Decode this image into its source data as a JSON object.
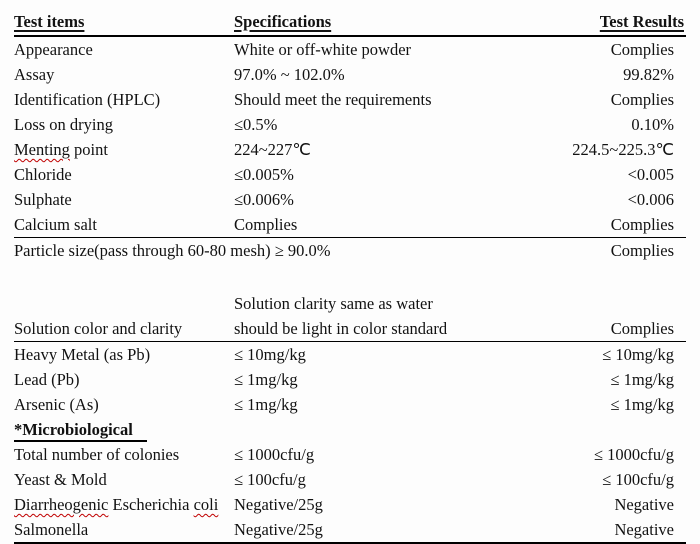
{
  "colors": {
    "text": "#121212",
    "rule": "#000000",
    "misspell_underline": "#c00000",
    "background": "#fdfdfd"
  },
  "table": {
    "headers": [
      "Test items",
      "Specifications",
      "Test Results"
    ],
    "rows": [
      {
        "item": "Appearance",
        "spec": "White or off-white powder",
        "result": "Complies"
      },
      {
        "item": "Assay",
        "spec": "97.0% ~ 102.0%",
        "result": "99.82%"
      },
      {
        "item": "Identification (HPLC)",
        "spec": "Should meet the requirements",
        "result": "Complies"
      },
      {
        "item": "Loss on drying",
        "spec": "≤0.5%",
        "result": "0.10%"
      },
      {
        "item": "Menting point",
        "spec": "224~227℃",
        "result": "224.5~225.3℃",
        "misspelled_words": [
          "Menting"
        ]
      },
      {
        "item": "Chloride",
        "spec": "≤0.005%",
        "result": "<0.005"
      },
      {
        "item": "Sulphate",
        "spec": "≤0.006%",
        "result": "<0.006"
      },
      {
        "item": "Calcium salt",
        "spec": "Complies",
        "result": "Complies",
        "rule_below": true
      },
      {
        "item": "Particle size(pass through 60-80 mesh) ≥ 90.0%",
        "result": "Complies",
        "span_item": true
      },
      {
        "spacer": true
      },
      {
        "item": "Solution color and clarity",
        "spec_lines": [
          "Solution clarity same as water",
          "should be light in color standard"
        ],
        "result": "Complies",
        "rule_below": true,
        "two_line": true
      },
      {
        "item": "Heavy Metal (as Pb)",
        "spec": "≤ 10mg/kg",
        "result": "≤ 10mg/kg"
      },
      {
        "item": "Lead (Pb)",
        "spec": "≤ 1mg/kg",
        "result": "≤ 1mg/kg"
      },
      {
        "item": "Arsenic (As)",
        "spec": "≤ 1mg/kg",
        "result": "≤ 1mg/kg"
      },
      {
        "item": "*Microbiological",
        "section_header": true
      },
      {
        "item": "Total number of colonies",
        "spec": "≤ 1000cfu/g",
        "result": "≤ 1000cfu/g"
      },
      {
        "item": "Yeast & Mold",
        "spec": "≤ 100cfu/g",
        "result": "≤ 100cfu/g"
      },
      {
        "item": "Diarrheogenic Escherichia coli",
        "spec": "Negative/25g",
        "result": "Negative",
        "misspelled_words": [
          "Diarrheogenic",
          "coli"
        ]
      },
      {
        "item": "Salmonella",
        "spec": "Negative/25g",
        "result": "Negative"
      }
    ]
  }
}
